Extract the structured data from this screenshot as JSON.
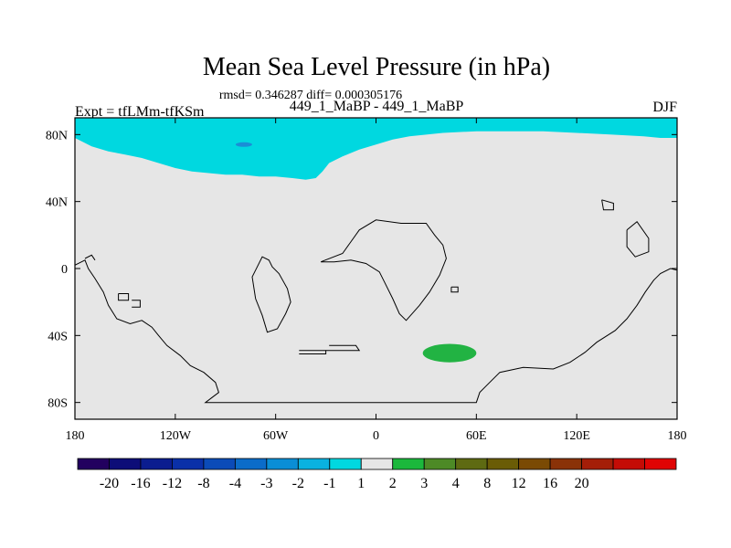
{
  "chart_data": {
    "type": "heatmap",
    "title": "Mean Sea Level Pressure (in hPa)",
    "subtitle": "rmsd= 0.346287 diff= 0.000305176",
    "center_label": "449_1_MaBP - 449_1_MaBP",
    "left_label": "Expt = tfLMm-tfKSm",
    "right_label": "DJF",
    "x_ticks": [
      "180",
      "120W",
      "60W",
      "0",
      "60E",
      "120E",
      "180"
    ],
    "x_tick_values": [
      -180,
      -120,
      -60,
      0,
      60,
      120,
      180
    ],
    "y_ticks": [
      "80N",
      "40N",
      "0",
      "40S",
      "80S"
    ],
    "y_tick_values": [
      80,
      40,
      0,
      -40,
      -80
    ],
    "xlim": [
      -180,
      180
    ],
    "ylim": [
      -90,
      90
    ],
    "colorbar": {
      "colors": [
        "#22005f",
        "#0d0d78",
        "#0b1d8f",
        "#0a30a8",
        "#0b4bb8",
        "#0b6cc9",
        "#0a8ed6",
        "#0ab2e0",
        "#00d8e0",
        "#e6e6e6",
        "#1bb83c",
        "#4d8a26",
        "#5e6a12",
        "#6a5c06",
        "#7a4a04",
        "#8a3208",
        "#a41e08",
        "#c40c06",
        "#e00404"
      ],
      "labels": [
        "-20",
        "-16",
        "-12",
        "-8",
        "-4",
        "-3",
        "-2",
        "-1",
        "1",
        "2",
        "3",
        "4",
        "8",
        "12",
        "16",
        "20"
      ],
      "label_values": [
        -20,
        -16,
        -12,
        -8,
        -4,
        -3,
        -2,
        -1,
        1,
        2,
        3,
        4,
        8,
        12,
        16,
        20
      ],
      "background_color": "#e6e6e6"
    },
    "anomalies": [
      {
        "name": "arctic-low",
        "level": "-2 to -1",
        "color": "#00d8e0",
        "lon_range": [
          -180,
          180
        ],
        "lat_range": [
          53,
          90
        ]
      },
      {
        "name": "arctic-core",
        "level": "-3 to -2",
        "color": "#1a8ed6",
        "lon": -79,
        "lat": 74
      },
      {
        "name": "southern-ocean-high",
        "level": "1 to 2",
        "color": "#22b343",
        "lon_range": [
          28,
          60
        ],
        "lat_range": [
          -56,
          -45
        ]
      }
    ],
    "coastlines_lonlat": [
      [
        [
          -180,
          2
        ],
        [
          -174,
          5
        ],
        [
          -172,
          0
        ],
        [
          -168,
          -6
        ],
        [
          -163,
          -14
        ],
        [
          -160,
          -22
        ],
        [
          -155,
          -30
        ],
        [
          -147,
          -33
        ],
        [
          -140,
          -31
        ],
        [
          -134,
          -35
        ],
        [
          -130,
          -40
        ],
        [
          -125,
          -46
        ],
        [
          -117,
          -52
        ],
        [
          -111,
          -58
        ],
        [
          -103,
          -62
        ],
        [
          -96,
          -68
        ],
        [
          -94,
          -74
        ],
        [
          -98,
          -77
        ],
        [
          -102,
          -80
        ],
        [
          -90,
          -80
        ],
        [
          -74,
          -80
        ],
        [
          -55,
          -80
        ],
        [
          -30,
          -80
        ],
        [
          0,
          -80
        ],
        [
          30,
          -80
        ],
        [
          60,
          -80
        ],
        [
          62,
          -74
        ],
        [
          66,
          -70
        ],
        [
          74,
          -62
        ],
        [
          88,
          -59
        ],
        [
          106,
          -60
        ],
        [
          116,
          -56
        ],
        [
          125,
          -50
        ],
        [
          132,
          -44
        ],
        [
          143,
          -37
        ],
        [
          150,
          -30
        ],
        [
          156,
          -22
        ],
        [
          161,
          -14
        ],
        [
          166,
          -7
        ],
        [
          170,
          -3
        ],
        [
          176,
          0
        ],
        [
          180,
          -1
        ]
      ],
      [
        [
          -71,
          1
        ],
        [
          -68,
          7
        ],
        [
          -64,
          5
        ],
        [
          -62,
          1
        ],
        [
          -58,
          -3
        ],
        [
          -53,
          -12
        ],
        [
          -51,
          -20
        ],
        [
          -54,
          -27
        ],
        [
          -59,
          -36
        ],
        [
          -65,
          -38
        ],
        [
          -68,
          -28
        ],
        [
          -72,
          -18
        ],
        [
          -74,
          -5
        ],
        [
          -71,
          1
        ]
      ],
      [
        [
          -33,
          4
        ],
        [
          -20,
          9
        ],
        [
          -10,
          23
        ],
        [
          0,
          29
        ],
        [
          15,
          27
        ],
        [
          30,
          27
        ],
        [
          35,
          20
        ],
        [
          40,
          14
        ],
        [
          42,
          6
        ],
        [
          38,
          -4
        ],
        [
          32,
          -14
        ],
        [
          26,
          -22
        ],
        [
          18,
          -31
        ],
        [
          14,
          -27
        ],
        [
          10,
          -18
        ],
        [
          5,
          -8
        ],
        [
          2,
          -2
        ],
        [
          -6,
          3
        ],
        [
          -15,
          5
        ],
        [
          -25,
          4
        ],
        [
          -33,
          4
        ]
      ],
      [
        [
          -28,
          -46
        ],
        [
          -12,
          -46
        ],
        [
          -10,
          -49
        ],
        [
          -30,
          -49
        ]
      ],
      [
        [
          -46,
          -49
        ],
        [
          -30,
          -49
        ],
        [
          -30,
          -51
        ],
        [
          -46,
          -51
        ]
      ],
      [
        [
          -154,
          -15
        ],
        [
          -148,
          -15
        ],
        [
          -148,
          -19
        ],
        [
          -154,
          -19
        ],
        [
          -154,
          -15
        ]
      ],
      [
        [
          -146,
          -19
        ],
        [
          -141,
          -19
        ],
        [
          -141,
          -23
        ],
        [
          -146,
          -23
        ]
      ],
      [
        [
          45,
          -11
        ],
        [
          49,
          -11
        ],
        [
          49,
          -14
        ],
        [
          45,
          -14
        ],
        [
          45,
          -11
        ]
      ],
      [
        [
          -174,
          6
        ],
        [
          -170,
          8
        ],
        [
          -168,
          5
        ]
      ],
      [
        [
          135,
          41
        ],
        [
          142,
          39
        ],
        [
          142,
          35
        ],
        [
          136,
          35
        ],
        [
          135,
          41
        ]
      ],
      [
        [
          150,
          23
        ],
        [
          156,
          28
        ],
        [
          163,
          18
        ],
        [
          163,
          10
        ],
        [
          155,
          7
        ],
        [
          150,
          13
        ],
        [
          150,
          23
        ]
      ]
    ]
  }
}
